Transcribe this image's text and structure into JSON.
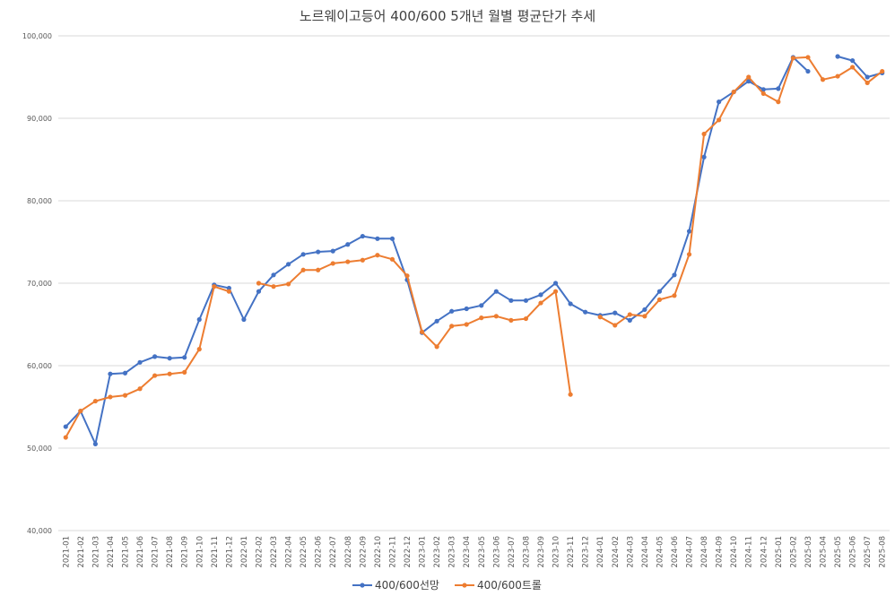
{
  "chart_data": {
    "type": "line",
    "title": "노르웨이고등어 400/600 5개년 월별 평균단가 추세",
    "xlabel": "",
    "ylabel": "",
    "ylim": [
      40000,
      100000
    ],
    "yticks": [
      40000,
      50000,
      60000,
      70000,
      80000,
      90000,
      100000
    ],
    "ytick_labels": [
      "40,000",
      "50,000",
      "60,000",
      "70,000",
      "80,000",
      "90,000",
      "100,000"
    ],
    "grid": true,
    "legend_position": "bottom",
    "x": [
      "2021-01",
      "2021-02",
      "2021-03",
      "2021-04",
      "2021-05",
      "2021-06",
      "2021-07",
      "2021-08",
      "2021-09",
      "2021-10",
      "2021-11",
      "2021-12",
      "2022-01",
      "2022-02",
      "2022-03",
      "2022-04",
      "2022-05",
      "2022-06",
      "2022-07",
      "2022-08",
      "2022-09",
      "2022-10",
      "2022-11",
      "2022-12",
      "2023-01",
      "2023-02",
      "2023-03",
      "2023-04",
      "2023-05",
      "2023-06",
      "2023-07",
      "2023-08",
      "2023-09",
      "2023-10",
      "2023-11",
      "2023-12",
      "2024-01",
      "2024-02",
      "2024-03",
      "2024-04",
      "2024-05",
      "2024-06",
      "2024-07",
      "2024-08",
      "2024-09",
      "2024-10",
      "2024-11",
      "2024-12",
      "2025-01",
      "2025-02",
      "2025-03",
      "2025-04",
      "2025-05",
      "2025-06",
      "2025-07",
      "2025-08"
    ],
    "series": [
      {
        "name": "400/600선망",
        "color": "#4472c4",
        "values": [
          52600,
          54500,
          50500,
          59000,
          59100,
          60400,
          61100,
          60900,
          61000,
          65600,
          69800,
          69400,
          65600,
          69000,
          71000,
          72300,
          73500,
          73800,
          73900,
          74700,
          75700,
          75400,
          75400,
          70400,
          64000,
          65400,
          66600,
          66900,
          67300,
          69000,
          67900,
          67900,
          68600,
          70000,
          67500,
          66500,
          66100,
          66400,
          65500,
          66800,
          69000,
          71000,
          76300,
          85300,
          92000,
          93200,
          94500,
          93500,
          93600,
          97400,
          95700,
          null,
          97500,
          97000,
          95000,
          95500
        ]
      },
      {
        "name": "400/600트롤",
        "color": "#ed7d31",
        "values": [
          51300,
          54500,
          55700,
          56200,
          56400,
          57200,
          58800,
          59000,
          59200,
          62000,
          69600,
          69000,
          null,
          70000,
          69600,
          69900,
          71600,
          71600,
          72400,
          72600,
          72800,
          73400,
          72900,
          70900,
          64100,
          62300,
          64800,
          65000,
          65800,
          66000,
          65500,
          65700,
          67600,
          69000,
          56500,
          null,
          65900,
          64900,
          66200,
          66000,
          68000,
          68500,
          73500,
          88100,
          89800,
          93200,
          95000,
          93000,
          92000,
          97300,
          97400,
          94700,
          95100,
          96200,
          94300,
          95700
        ]
      }
    ]
  }
}
